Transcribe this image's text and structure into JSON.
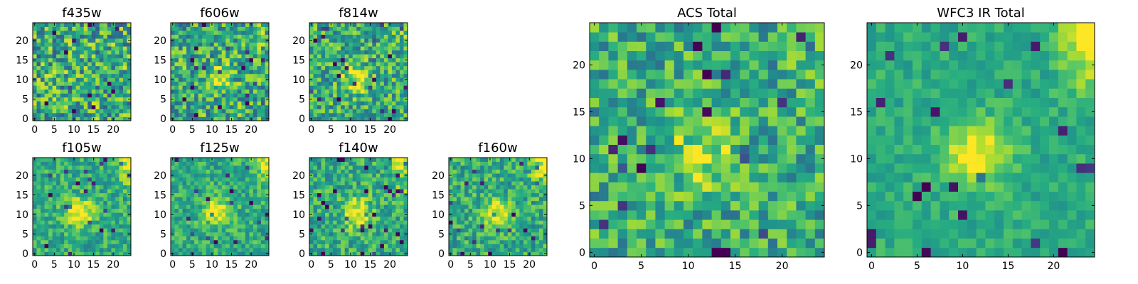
{
  "figure": {
    "description_free": true,
    "colormap": "viridis",
    "colors": {
      "low": "#440154",
      "mid": "#21918c",
      "high": "#fde725",
      "frame": "#000000"
    }
  },
  "chart_data": [
    {
      "type": "heatmap",
      "title": "f435w",
      "xlim": [
        -0.5,
        24.5
      ],
      "ylim": [
        -0.5,
        24.5
      ],
      "xticks": [
        0,
        5,
        10,
        15,
        20
      ],
      "yticks": [
        0,
        5,
        10,
        15,
        20
      ],
      "grid_size": 25,
      "source_seed": 11,
      "center_boost": 0.0,
      "noise": 0.55,
      "edge_glow": 0.0
    },
    {
      "type": "heatmap",
      "title": "f606w",
      "xlim": [
        -0.5,
        24.5
      ],
      "ylim": [
        -0.5,
        24.5
      ],
      "xticks": [
        0,
        5,
        10,
        15,
        20
      ],
      "yticks": [
        0,
        5,
        10,
        15,
        20
      ],
      "grid_size": 25,
      "source_seed": 23,
      "center_boost": 0.25,
      "noise": 0.5,
      "edge_glow": 0.1
    },
    {
      "type": "heatmap",
      "title": "f814w",
      "xlim": [
        -0.5,
        24.5
      ],
      "ylim": [
        -0.5,
        24.5
      ],
      "xticks": [
        0,
        5,
        10,
        15,
        20
      ],
      "yticks": [
        0,
        5,
        10,
        15,
        20
      ],
      "grid_size": 25,
      "source_seed": 37,
      "center_boost": 0.35,
      "noise": 0.45,
      "edge_glow": 0.1
    },
    {
      "type": "heatmap",
      "title": "f105w",
      "xlim": [
        -0.5,
        24.5
      ],
      "ylim": [
        -0.5,
        24.5
      ],
      "xticks": [
        0,
        5,
        10,
        15,
        20
      ],
      "yticks": [
        0,
        5,
        10,
        15,
        20
      ],
      "grid_size": 25,
      "source_seed": 41,
      "center_boost": 0.45,
      "noise": 0.3,
      "edge_glow": 0.35
    },
    {
      "type": "heatmap",
      "title": "f125w",
      "xlim": [
        -0.5,
        24.5
      ],
      "ylim": [
        -0.5,
        24.5
      ],
      "xticks": [
        0,
        5,
        10,
        15,
        20
      ],
      "yticks": [
        0,
        5,
        10,
        15,
        20
      ],
      "grid_size": 25,
      "source_seed": 53,
      "center_boost": 0.4,
      "noise": 0.3,
      "edge_glow": 0.4
    },
    {
      "type": "heatmap",
      "title": "f140w",
      "xlim": [
        -0.5,
        24.5
      ],
      "ylim": [
        -0.5,
        24.5
      ],
      "xticks": [
        0,
        5,
        10,
        15,
        20
      ],
      "yticks": [
        0,
        5,
        10,
        15,
        20
      ],
      "grid_size": 25,
      "source_seed": 67,
      "center_boost": 0.45,
      "noise": 0.35,
      "edge_glow": 0.4
    },
    {
      "type": "heatmap",
      "title": "f160w",
      "xlim": [
        -0.5,
        24.5
      ],
      "ylim": [
        -0.5,
        24.5
      ],
      "xticks": [
        0,
        5,
        10,
        15,
        20
      ],
      "yticks": [
        0,
        5,
        10,
        15,
        20
      ],
      "grid_size": 25,
      "source_seed": 79,
      "center_boost": 0.4,
      "noise": 0.35,
      "edge_glow": 0.45
    },
    {
      "type": "heatmap",
      "title": "ACS Total",
      "xlim": [
        -0.5,
        24.5
      ],
      "ylim": [
        -0.5,
        24.5
      ],
      "xticks": [
        0,
        5,
        10,
        15,
        20
      ],
      "yticks": [
        0,
        5,
        10,
        15,
        20
      ],
      "grid_size": 25,
      "source_seed": 97,
      "center_boost": 0.3,
      "noise": 0.4,
      "edge_glow": 0.1
    },
    {
      "type": "heatmap",
      "title": "WFC3 IR Total",
      "xlim": [
        -0.5,
        24.5
      ],
      "ylim": [
        -0.5,
        24.5
      ],
      "xticks": [
        0,
        5,
        10,
        15,
        20
      ],
      "yticks": [
        0,
        5,
        10,
        15,
        20
      ],
      "grid_size": 25,
      "source_seed": 101,
      "center_boost": 0.4,
      "noise": 0.18,
      "edge_glow": 0.5
    }
  ]
}
